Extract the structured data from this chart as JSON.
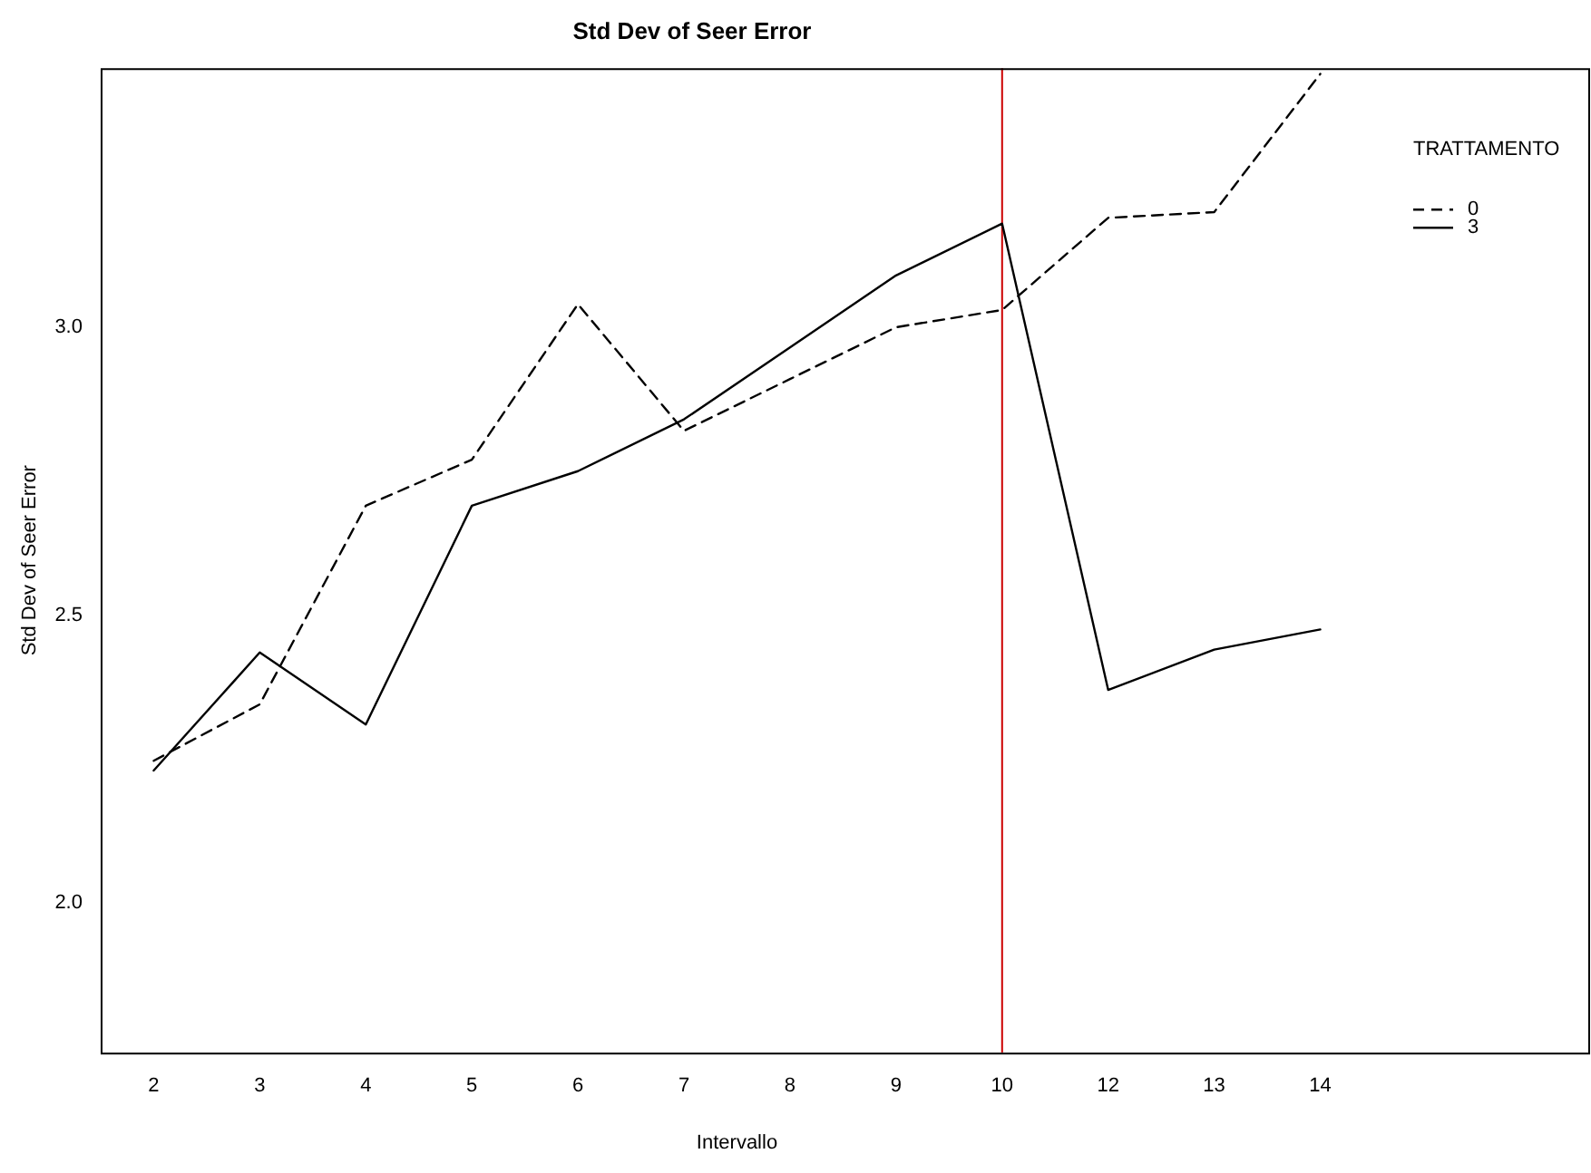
{
  "chart_data": {
    "type": "line",
    "title": "Std Dev of Seer Error",
    "xlabel": "Intervallo",
    "ylabel": "Std Dev of Seer Error",
    "legend_title": "TRATTAMENTO",
    "categories": [
      "2",
      "3",
      "4",
      "5",
      "6",
      "7",
      "8",
      "9",
      "10",
      "12",
      "13",
      "14"
    ],
    "series": [
      {
        "name": "0",
        "color": "#000000",
        "line_style": "dashed",
        "values": [
          2.247,
          2.345,
          2.69,
          2.77,
          3.04,
          2.82,
          2.91,
          3.0,
          3.03,
          3.19,
          3.2,
          3.44
        ]
      },
      {
        "name": "3",
        "color": "#000000",
        "line_style": "solid",
        "values": [
          2.23,
          2.435,
          2.31,
          2.69,
          2.75,
          2.84,
          2.965,
          3.09,
          3.18,
          2.37,
          2.44,
          2.475
        ]
      }
    ],
    "ylim": [
      1.74,
      3.45
    ],
    "yticks": [
      {
        "value": 2,
        "label": "2.0"
      },
      {
        "value": 2.5,
        "label": "2.5"
      },
      {
        "value": 3,
        "label": "3.0"
      }
    ],
    "ref_lines": [
      {
        "axis": "x",
        "value": "10",
        "color": "#cc0000"
      }
    ],
    "legend": "top right",
    "grid": false,
    "marker": "none"
  }
}
